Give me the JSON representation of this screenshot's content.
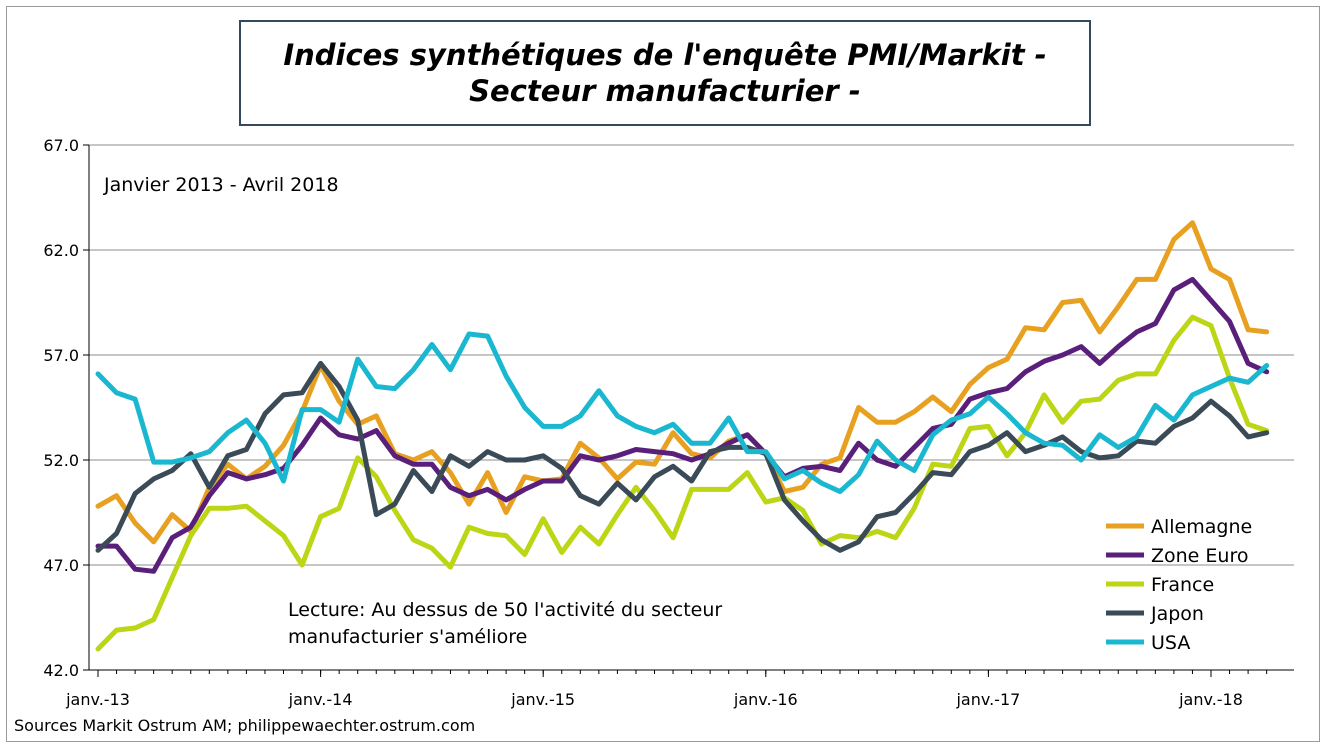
{
  "chart_data": {
    "type": "line",
    "title": [
      "Indices synthétiques de l'enquête PMI/Markit -",
      "Secteur manufacturier -"
    ],
    "subtitle": "Janvier 2013 - Avril 2018",
    "annotation": [
      "Lecture: Au dessus de 50 l'activité du secteur",
      "manufacturier s'améliore"
    ],
    "source": "Sources Markit Ostrum AM; philippewaechter.ostrum.com",
    "ylim": [
      42,
      67
    ],
    "yticks": [
      "42.0",
      "47.0",
      "52.0",
      "57.0",
      "62.0",
      "67.0"
    ],
    "x_tick_labels": [
      "janv.-13",
      "janv.-14",
      "janv.-15",
      "janv.-16",
      "janv.-17",
      "janv.-18"
    ],
    "x_start": "2013-01",
    "months": 64,
    "grid": "horizontal",
    "legend_position": "bottom-right",
    "series": [
      {
        "name": "Allemagne",
        "color": "#e8a020",
        "values": [
          49.8,
          50.3,
          49.0,
          48.1,
          49.4,
          48.6,
          50.7,
          51.8,
          51.1,
          51.7,
          52.7,
          54.3,
          56.5,
          54.8,
          53.7,
          54.1,
          52.3,
          52.0,
          52.4,
          51.4,
          49.9,
          51.4,
          49.5,
          51.2,
          51.0,
          51.1,
          52.8,
          52.1,
          51.1,
          51.9,
          51.8,
          53.3,
          52.3,
          52.1,
          52.9,
          53.2,
          52.3,
          50.5,
          50.7,
          51.8,
          52.1,
          54.5,
          53.8,
          53.8,
          54.3,
          55.0,
          54.3,
          55.6,
          56.4,
          56.8,
          58.3,
          58.2,
          59.5,
          59.6,
          58.1,
          59.3,
          60.6,
          60.6,
          62.5,
          63.3,
          61.1,
          60.6,
          58.2,
          58.1
        ]
      },
      {
        "name": "Zone Euro",
        "color": "#5a1f7a",
        "values": [
          47.9,
          47.9,
          46.8,
          46.7,
          48.3,
          48.8,
          50.3,
          51.4,
          51.1,
          51.3,
          51.6,
          52.7,
          54.0,
          53.2,
          53.0,
          53.4,
          52.2,
          51.8,
          51.8,
          50.7,
          50.3,
          50.6,
          50.1,
          50.6,
          51.0,
          51.0,
          52.2,
          52.0,
          52.2,
          52.5,
          52.4,
          52.3,
          52.0,
          52.3,
          52.8,
          53.2,
          52.3,
          51.2,
          51.6,
          51.7,
          51.5,
          52.8,
          52.0,
          51.7,
          52.6,
          53.5,
          53.7,
          54.9,
          55.2,
          55.4,
          56.2,
          56.7,
          57.0,
          57.4,
          56.6,
          57.4,
          58.1,
          58.5,
          60.1,
          60.6,
          59.6,
          58.6,
          56.6,
          56.2
        ]
      },
      {
        "name": "France",
        "color": "#bcd615",
        "values": [
          43.0,
          43.9,
          44.0,
          44.4,
          46.4,
          48.4,
          49.7,
          49.7,
          49.8,
          49.1,
          48.4,
          47.0,
          49.3,
          49.7,
          52.1,
          51.2,
          49.6,
          48.2,
          47.8,
          46.9,
          48.8,
          48.5,
          48.4,
          47.5,
          49.2,
          47.6,
          48.8,
          48.0,
          49.4,
          50.7,
          49.6,
          48.3,
          50.6,
          50.6,
          50.6,
          51.4,
          50.0,
          50.2,
          49.6,
          48.0,
          48.4,
          48.3,
          48.6,
          48.3,
          49.7,
          51.8,
          51.7,
          53.5,
          53.6,
          52.2,
          53.3,
          55.1,
          53.8,
          54.8,
          54.9,
          55.8,
          56.1,
          56.1,
          57.7,
          58.8,
          58.4,
          55.9,
          53.7,
          53.4
        ]
      },
      {
        "name": "Japon",
        "color": "#3a4a56",
        "values": [
          47.7,
          48.5,
          50.4,
          51.1,
          51.5,
          52.3,
          50.7,
          52.2,
          52.5,
          54.2,
          55.1,
          55.2,
          56.6,
          55.5,
          53.9,
          49.4,
          49.9,
          51.5,
          50.5,
          52.2,
          51.7,
          52.4,
          52.0,
          52.0,
          52.2,
          51.6,
          50.3,
          49.9,
          50.9,
          50.1,
          51.2,
          51.7,
          51.0,
          52.4,
          52.6,
          52.6,
          52.3,
          50.1,
          49.1,
          48.2,
          47.7,
          48.1,
          49.3,
          49.5,
          50.4,
          51.4,
          51.3,
          52.4,
          52.7,
          53.3,
          52.4,
          52.7,
          53.1,
          52.4,
          52.1,
          52.2,
          52.9,
          52.8,
          53.6,
          54.0,
          54.8,
          54.1,
          53.1,
          53.3
        ]
      },
      {
        "name": "USA",
        "color": "#1ab8d0",
        "values": [
          56.1,
          55.2,
          54.9,
          51.9,
          51.9,
          52.1,
          52.4,
          53.3,
          53.9,
          52.8,
          51.0,
          54.4,
          54.4,
          53.8,
          56.8,
          55.5,
          55.4,
          56.3,
          57.5,
          56.3,
          58.0,
          57.9,
          56.0,
          54.5,
          53.6,
          53.6,
          54.1,
          55.3,
          54.1,
          53.6,
          53.3,
          53.7,
          52.8,
          52.8,
          54.0,
          52.4,
          52.4,
          51.1,
          51.5,
          50.9,
          50.5,
          51.3,
          52.9,
          52.0,
          51.5,
          53.2,
          53.9,
          54.2,
          55.0,
          54.2,
          53.3,
          52.8,
          52.7,
          52.0,
          53.2,
          52.6,
          53.1,
          54.6,
          53.9,
          55.1,
          55.5,
          55.9,
          55.7,
          56.5
        ]
      }
    ]
  }
}
